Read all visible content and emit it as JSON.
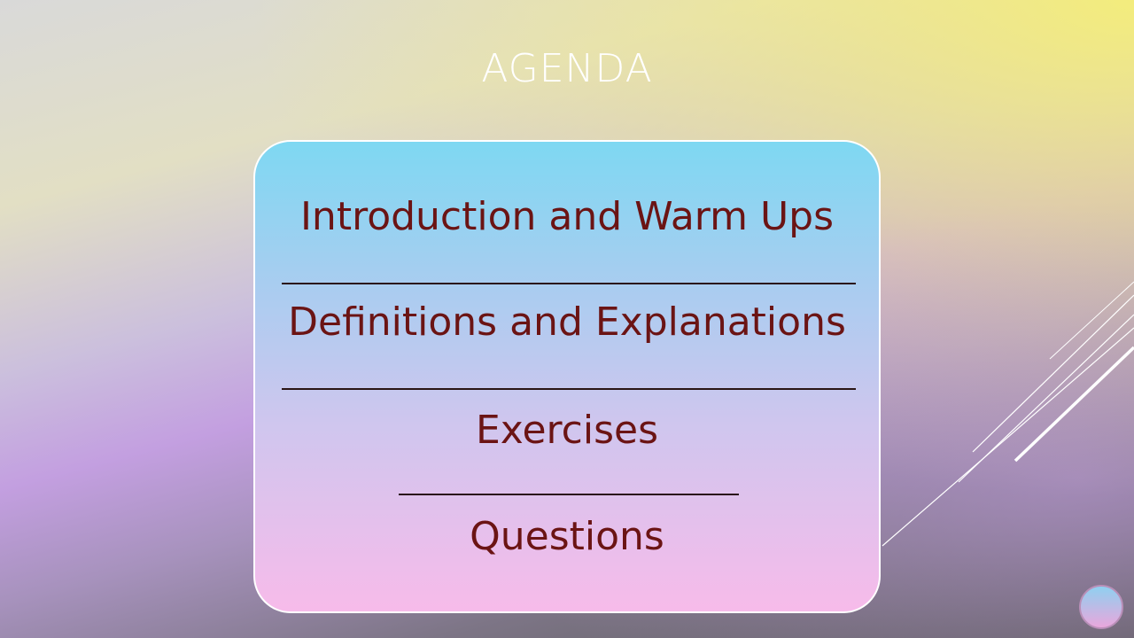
{
  "slide": {
    "title": "AGENDA",
    "agenda_items": [
      "Introduction and Warm Ups",
      "Definitions and Explanations",
      "Exercises",
      "Questions"
    ]
  },
  "colors": {
    "title": "#ffffff",
    "item_text": "#6b1414",
    "box_border": "#ffffff",
    "divider": "#2a1515",
    "box_gradient_top": "#7ed8f2",
    "box_gradient_bottom": "#f7bbea"
  },
  "icons": {
    "corner_logo": "circular-logo-icon"
  }
}
